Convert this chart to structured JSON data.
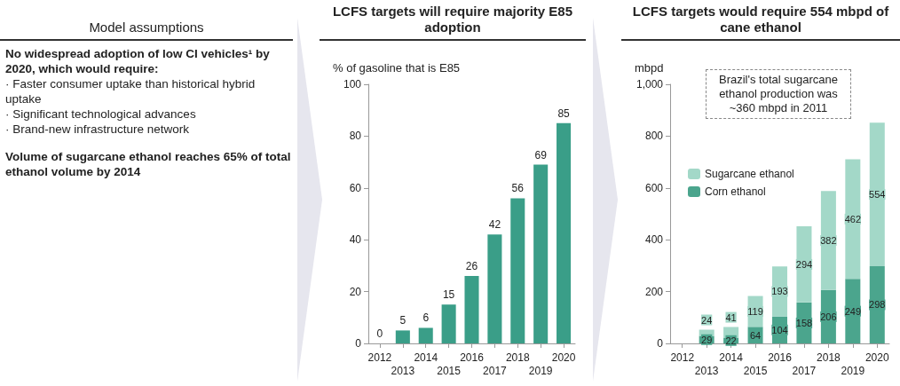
{
  "chart_data": [
    {
      "type": "other",
      "title": "Model assumptions",
      "annotations": [
        "No widespread adoption of low CI vehicles¹ by 2020, which would require:",
        "·  Faster consumer uptake than historical hybrid uptake",
        "·  Significant technological advances",
        "·  Brand-new infrastructure network",
        "Volume of sugarcane ethanol reaches 65% of total ethanol volume by 2014"
      ]
    },
    {
      "type": "bar",
      "title": "LCFS targets will require majority E85 adoption",
      "ylabel": "% of gasoline that is E85",
      "categories": [
        "2012",
        "2013",
        "2014",
        "2015",
        "2016",
        "2017",
        "2018",
        "2019",
        "2020"
      ],
      "values": [
        0,
        5,
        6,
        15,
        26,
        42,
        56,
        69,
        85
      ],
      "color": "#3a9e88",
      "ylim": [
        0,
        100
      ],
      "yticks": [
        0,
        20,
        40,
        60,
        80,
        100
      ],
      "data_labels": true,
      "grid": false,
      "legend": false
    },
    {
      "type": "bar",
      "title": "LCFS targets would require 554 mbpd of cane ethanol",
      "ylabel": "mbpd",
      "categories": [
        "2012",
        "2013",
        "2014",
        "2015",
        "2016",
        "2017",
        "2018",
        "2019",
        "2020"
      ],
      "stacked": true,
      "series": [
        {
          "name": "Corn ethanol",
          "color": "#4ba58d",
          "values": [
            null,
            29,
            22,
            64,
            104,
            158,
            206,
            249,
            298
          ]
        },
        {
          "name": "Sugarcane ethanol",
          "color": "#a3d8c8",
          "values": [
            null,
            24,
            41,
            119,
            193,
            294,
            382,
            462,
            554
          ]
        }
      ],
      "ylim": [
        0,
        1000
      ],
      "yticks": [
        0,
        200,
        400,
        600,
        800,
        {
          "value": 1000,
          "label": "1,000"
        }
      ],
      "data_labels": true,
      "grid": false,
      "legend": "top left",
      "annotations": [
        "Brazil's total sugarcane ethanol production was ~360 mbpd in 2011"
      ]
    }
  ]
}
